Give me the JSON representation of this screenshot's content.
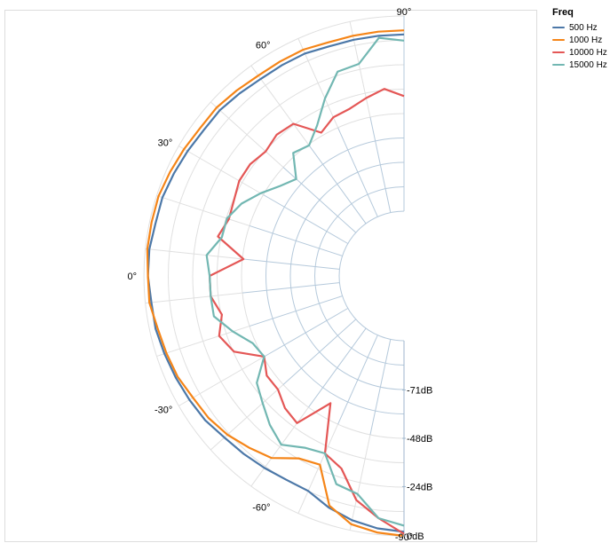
{
  "chart_data": {
    "type": "line",
    "coordinate": "polar",
    "title": "",
    "legend": {
      "title": "Freq",
      "position": "right-top"
    },
    "angle_ticks": [
      "90°",
      "60°",
      "30°",
      "0°",
      "-30°",
      "-60°",
      "-90°"
    ],
    "radius_ticks": [
      "-71dB",
      "-48dB",
      "-24dB",
      "0dB"
    ],
    "r_domain": [
      -95,
      0
    ],
    "grid": true,
    "angles": [
      -90,
      -84,
      -78,
      -72,
      -66,
      -60,
      -54,
      -48,
      -42,
      -36,
      -30,
      -24,
      -18,
      -12,
      -6,
      0,
      6,
      12,
      18,
      24,
      30,
      36,
      42,
      48,
      54,
      60,
      66,
      72,
      78,
      84,
      90
    ],
    "series": [
      {
        "name": "500 Hz",
        "color": "#4c78a8",
        "values": [
          -2,
          -3,
          -5,
          -8,
          -12,
          -12,
          -11,
          -10,
          -9,
          -7,
          -6,
          -5,
          -4,
          -3,
          -3,
          -2,
          -2,
          -3,
          -3,
          -4,
          -5,
          -6,
          -6,
          -7,
          -8,
          -8,
          -8,
          -9,
          -9,
          -9,
          -9
        ]
      },
      {
        "name": "1000 Hz",
        "color": "#f58518",
        "values": [
          0,
          -1,
          -3,
          -9,
          -26,
          -24,
          -17,
          -14,
          -11,
          -9,
          -8,
          -6,
          -5,
          -4,
          -2,
          -2,
          -1,
          -1,
          -1,
          -2,
          -3,
          -4,
          -4,
          -5,
          -6,
          -6,
          -6,
          -7,
          -7,
          -7,
          -7
        ]
      },
      {
        "name": "10000 Hz",
        "color": "#e45756",
        "values": [
          -1,
          -8,
          -15,
          -28,
          -32,
          -55,
          -38,
          -40,
          -44,
          -44,
          -48,
          -36,
          -32,
          -36,
          -32,
          -32,
          -48,
          -34,
          -37,
          -36,
          -34,
          -34,
          -36,
          -34,
          -35,
          -46,
          -42,
          -41,
          -38,
          -35,
          -39
        ]
      },
      {
        "name": "15000 Hz",
        "color": "#72b7b2",
        "values": [
          -5,
          -8,
          -18,
          -20,
          -32,
          -30,
          -25,
          -29,
          -34,
          -38,
          -48,
          -46,
          -39,
          -32,
          -32,
          -32,
          -30,
          -36,
          -36,
          -40,
          -46,
          -52,
          -56,
          -46,
          -48,
          -42,
          -32,
          -22,
          -21,
          -10,
          -12
        ]
      }
    ]
  }
}
